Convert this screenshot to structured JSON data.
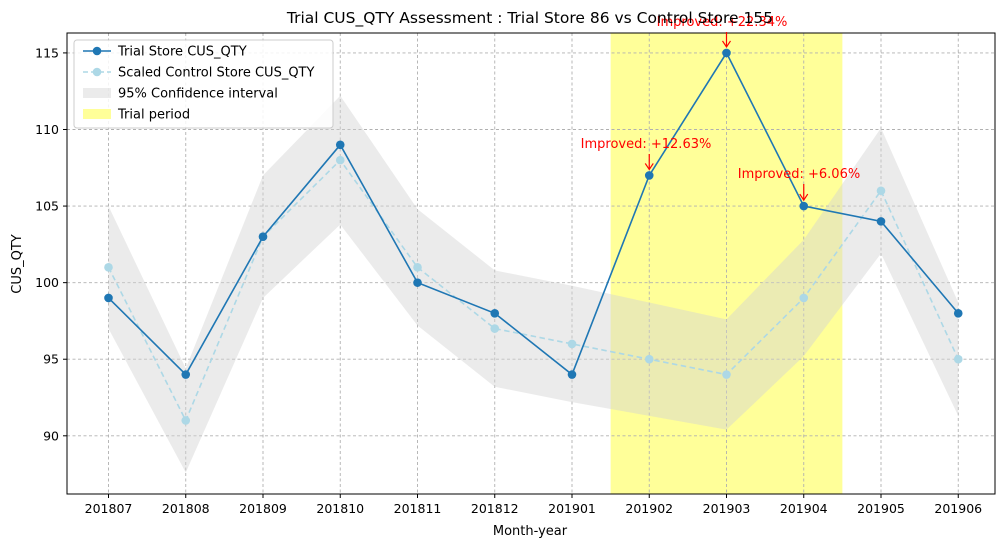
{
  "chart_data": {
    "type": "line",
    "title": "Trial CUS_QTY Assessment : Trial Store 86 vs Control Store 155",
    "xlabel": "Month-year",
    "ylabel": "CUS_QTY",
    "categories": [
      "201807",
      "201808",
      "201809",
      "201810",
      "201811",
      "201812",
      "201901",
      "201902",
      "201903",
      "201904",
      "201905",
      "201906"
    ],
    "ylim": [
      86.2,
      116.3
    ],
    "yticks": [
      90,
      95,
      100,
      105,
      110,
      115
    ],
    "grid": true,
    "legend_position": "top-left",
    "series": [
      {
        "name": "Trial Store CUS_QTY",
        "values": [
          99,
          94,
          103,
          109,
          100,
          98,
          94,
          107,
          115,
          105,
          104,
          98
        ],
        "color": "#1f77b4",
        "style": "solid"
      },
      {
        "name": "Scaled Control Store CUS_QTY",
        "values": [
          101,
          91,
          103,
          108,
          101,
          97,
          96,
          95,
          94,
          99,
          106,
          95
        ],
        "color": "#add8e6",
        "style": "dashed"
      }
    ],
    "confidence_band": {
      "name": "95% Confidence interval",
      "lower": [
        97.0,
        87.6,
        99.0,
        103.8,
        97.2,
        93.2,
        92.2,
        91.3,
        90.4,
        95.2,
        101.9,
        91.3
      ],
      "upper": [
        105.0,
        94.4,
        107.0,
        112.2,
        104.8,
        100.8,
        99.8,
        98.7,
        97.6,
        102.8,
        110.1,
        98.7
      ],
      "color": "#d3d3d3"
    },
    "trial_period": {
      "name": "Trial period",
      "start_index": 6.5,
      "end_index": 9.5,
      "color": "#ffff99"
    },
    "annotations": [
      {
        "text": "Improved: +22.34%",
        "category": "201903",
        "value": 115,
        "color": "#ff0000"
      },
      {
        "text": "Improved: +12.63%",
        "category": "201902",
        "value": 107,
        "color": "#ff0000"
      },
      {
        "text": "Improved: +6.06%",
        "category": "201904",
        "value": 105,
        "color": "#ff0000"
      }
    ]
  }
}
